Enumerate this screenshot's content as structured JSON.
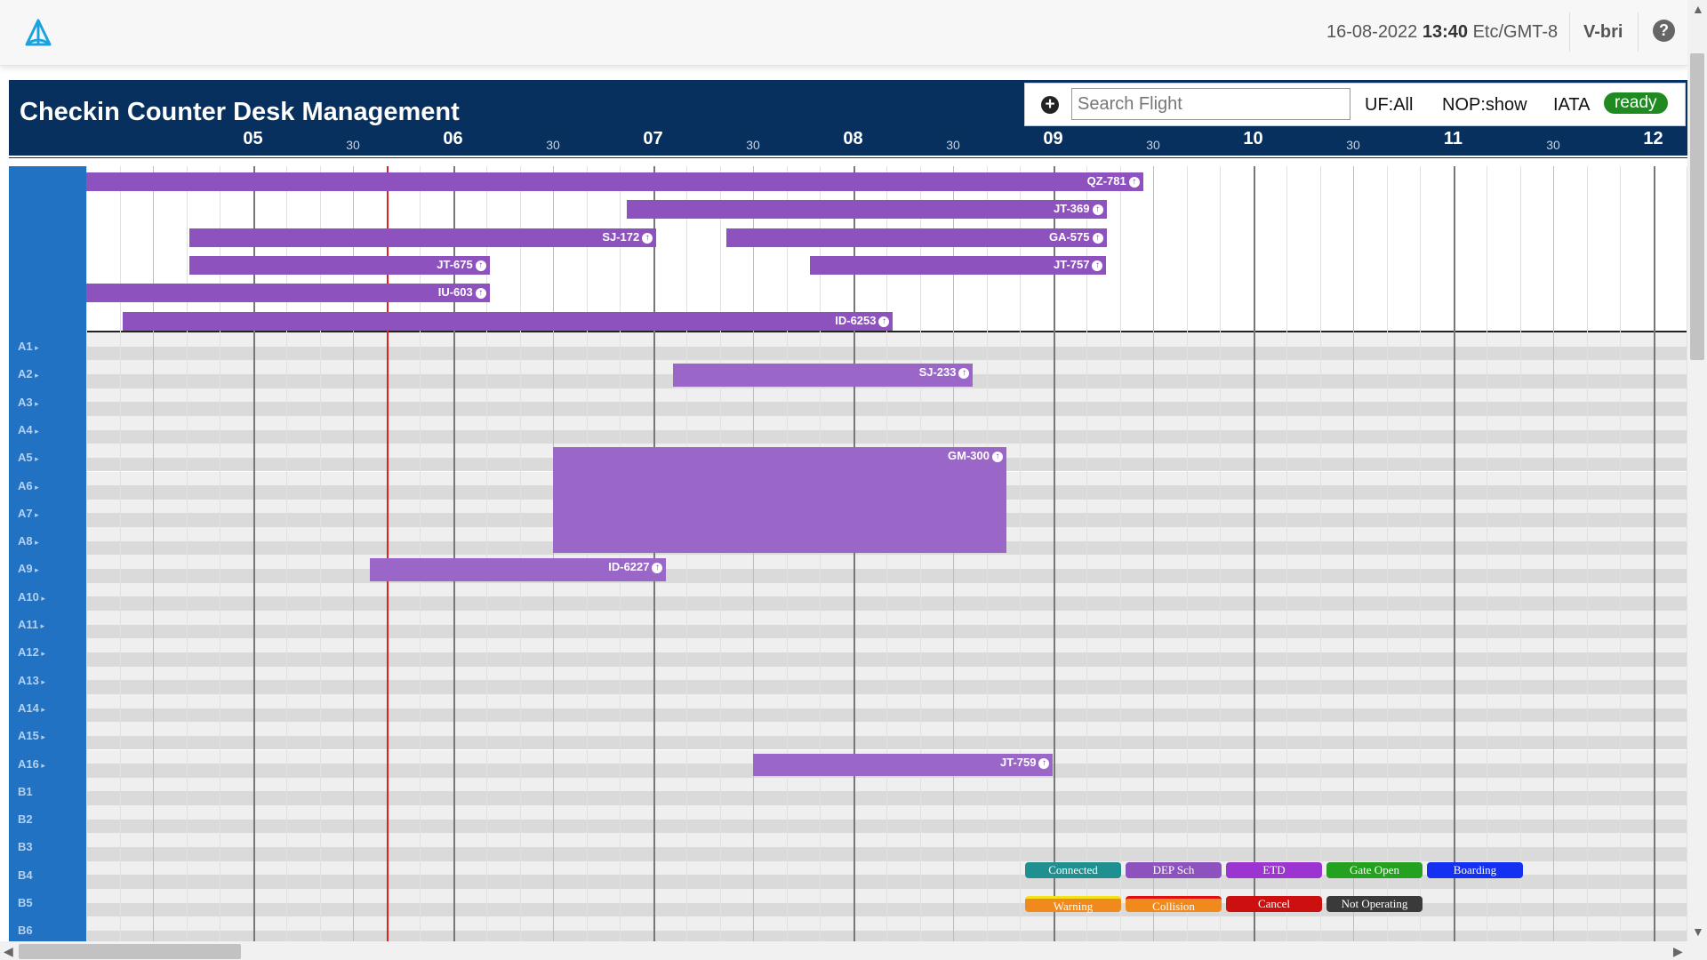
{
  "topbar": {
    "date": "16-08-2022",
    "time": "13:40",
    "timezone": "Etc/GMT-8",
    "user": "V-bri",
    "help_label": "?"
  },
  "panel": {
    "title": "Checkin Counter Desk Management"
  },
  "toolbar": {
    "add_label": "+",
    "search_placeholder": "Search Flight",
    "uf": "UF:All",
    "nop": "NOP:show",
    "iata": "IATA",
    "status": "ready"
  },
  "timeline": {
    "start_hour": 4.1667,
    "end_hour": 12.2,
    "current_time": 5.6667,
    "ticks": [
      {
        "label": "05",
        "hour": 5,
        "type": "hour"
      },
      {
        "label": "30",
        "hour": 5.5,
        "type": "half"
      },
      {
        "label": "06",
        "hour": 6,
        "type": "hour"
      },
      {
        "label": "30",
        "hour": 6.5,
        "type": "half"
      },
      {
        "label": "07",
        "hour": 7,
        "type": "hour"
      },
      {
        "label": "30",
        "hour": 7.5,
        "type": "half"
      },
      {
        "label": "08",
        "hour": 8,
        "type": "hour"
      },
      {
        "label": "30",
        "hour": 8.5,
        "type": "half"
      },
      {
        "label": "09",
        "hour": 9,
        "type": "hour"
      },
      {
        "label": "30",
        "hour": 9.5,
        "type": "half"
      },
      {
        "label": "10",
        "hour": 10,
        "type": "hour"
      },
      {
        "label": "30",
        "hour": 10.5,
        "type": "half"
      },
      {
        "label": "11",
        "hour": 11,
        "type": "hour"
      },
      {
        "label": "30",
        "hour": 11.5,
        "type": "half"
      },
      {
        "label": "12",
        "hour": 12,
        "type": "hour"
      }
    ]
  },
  "unassigned": [
    {
      "flight": "QZ-781",
      "start": 4.1667,
      "end": 9.45,
      "lane": 0
    },
    {
      "flight": "JT-369",
      "start": 6.8667,
      "end": 9.2667,
      "lane": 1
    },
    {
      "flight": "SJ-172",
      "start": 4.6833,
      "end": 7.0167,
      "lane": 2
    },
    {
      "flight": "GA-575",
      "start": 7.3667,
      "end": 9.2667,
      "lane": 2
    },
    {
      "flight": "JT-675",
      "start": 4.6833,
      "end": 6.1833,
      "lane": 3
    },
    {
      "flight": "JT-757",
      "start": 7.7833,
      "end": 9.2667,
      "lane": 3
    },
    {
      "flight": "IU-603",
      "start": 4.1667,
      "end": 6.1833,
      "lane": 4
    },
    {
      "flight": "ID-6253",
      "start": 4.35,
      "end": 8.2,
      "lane": 5
    }
  ],
  "rows": [
    "A1",
    "A2",
    "A3",
    "A4",
    "A5",
    "A6",
    "A7",
    "A8",
    "A9",
    "A10",
    "A11",
    "A12",
    "A13",
    "A14",
    "A15",
    "A16",
    "B1",
    "B2",
    "B3",
    "B4",
    "B5",
    "B6"
  ],
  "assigned": [
    {
      "flight": "SJ-233",
      "start": 7.1,
      "end": 8.6,
      "row_start": 1,
      "row_span": 1
    },
    {
      "flight": "GM-300",
      "start": 6.5,
      "end": 8.7667,
      "row_start": 4,
      "row_span": 4
    },
    {
      "flight": "ID-6227",
      "start": 5.5833,
      "end": 7.0667,
      "row_start": 8,
      "row_span": 1
    },
    {
      "flight": "JT-759",
      "start": 7.5,
      "end": 9.0,
      "row_start": 15,
      "row_span": 1
    }
  ],
  "legend": [
    {
      "label": "Connected",
      "color": "#1f8f8f",
      "row": 0
    },
    {
      "label": "DEP Sch",
      "color": "#8e52bf",
      "row": 0
    },
    {
      "label": "ETD",
      "color": "#9b34d1",
      "row": 0
    },
    {
      "label": "Gate Open",
      "color": "#24a11e",
      "row": 0
    },
    {
      "label": "Boarding",
      "color": "#1430f0",
      "row": 0
    },
    {
      "label": "Warning",
      "color": "#f08a1c",
      "row": 1
    },
    {
      "label": "Collision",
      "color": "#f08a1c",
      "row": 1
    },
    {
      "label": "Cancel",
      "color": "#cc1010",
      "row": 1
    },
    {
      "label": "Not Operating",
      "color": "#3a3a3a",
      "row": 1
    }
  ]
}
